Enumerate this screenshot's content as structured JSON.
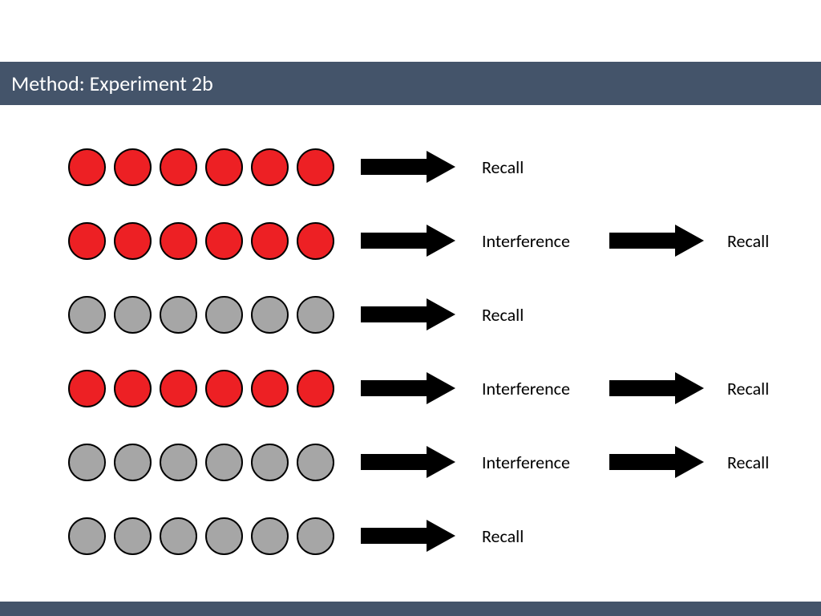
{
  "header": {
    "title": "Method: Experiment 2b",
    "bg_color": "#44546a",
    "color": "#ffffff",
    "fontsize": 26
  },
  "footer_bar_color": "#44546a",
  "colors": {
    "red_fill": "#ed2024",
    "red_stroke": "#000000",
    "gray_fill": "#a6a6a6",
    "gray_stroke": "#000000",
    "arrow_color": "#000000",
    "label_color": "#000000"
  },
  "label_fontsize": 22,
  "circle_count_per_row": 6,
  "rows": [
    {
      "circle_color": "red",
      "label1": "Recall",
      "has_second": false
    },
    {
      "circle_color": "red",
      "label1": "Interference",
      "has_second": true,
      "label2": "Recall"
    },
    {
      "circle_color": "gray",
      "label1": "Recall",
      "has_second": false
    },
    {
      "circle_color": "red",
      "label1": "Interference",
      "has_second": true,
      "label2": "Recall"
    },
    {
      "circle_color": "gray",
      "label1": "Interference",
      "has_second": true,
      "label2": "Recall"
    },
    {
      "circle_color": "gray",
      "label1": "Recall",
      "has_second": false
    }
  ]
}
